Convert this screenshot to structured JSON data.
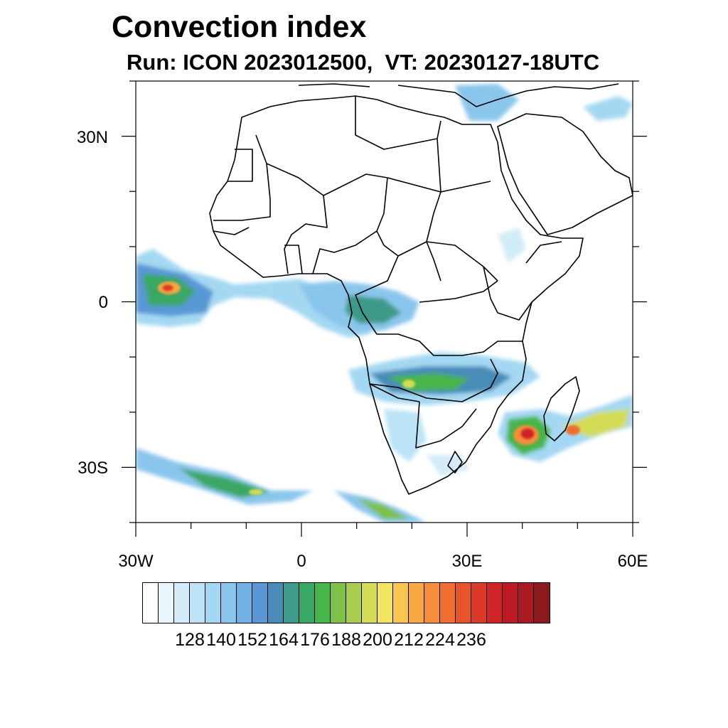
{
  "title": "Convection index",
  "subtitle": "Run: ICON 2023012500,  VT: 20230127-18UTC",
  "map": {
    "projection": "equirectangular",
    "lon_range": [
      -30,
      60
    ],
    "lat_range": [
      -40,
      40
    ],
    "x_ticks": [
      {
        "lon": -30,
        "label": "30W"
      },
      {
        "lon": 0,
        "label": "0"
      },
      {
        "lon": 30,
        "label": "30E"
      },
      {
        "lon": 60,
        "label": "60E"
      }
    ],
    "y_ticks": [
      {
        "lat": 30,
        "label": "30N"
      },
      {
        "lat": 0,
        "label": "0"
      },
      {
        "lat": -30,
        "label": "30S"
      }
    ]
  },
  "colorbar": {
    "colors": [
      "#ffffff",
      "#e8f5fc",
      "#d2ecf8",
      "#bce4f6",
      "#a4d8f2",
      "#8ac6ec",
      "#70b0e2",
      "#5898d4",
      "#4a8cb8",
      "#3e9a8a",
      "#3aa764",
      "#46b54a",
      "#7ec04a",
      "#a8cc4e",
      "#d4dc56",
      "#f0e460",
      "#f7c552",
      "#f7a843",
      "#f58d3a",
      "#ef6e2f",
      "#e6542a",
      "#dc3a28",
      "#d02428",
      "#bc1b26",
      "#a81a22",
      "#8c1a1c"
    ],
    "tick_labels": [
      "128",
      "140",
      "152",
      "164",
      "176",
      "188",
      "200",
      "212",
      "224",
      "236"
    ]
  }
}
